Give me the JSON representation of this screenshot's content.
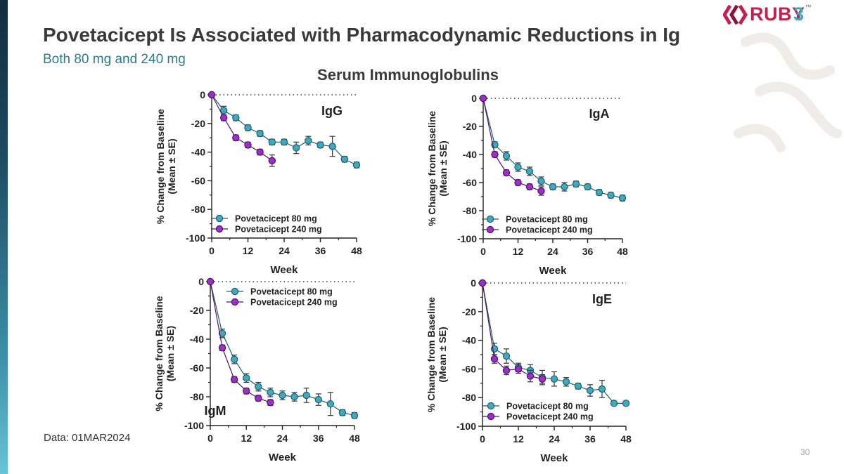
{
  "header": {
    "title": "Povetacicept Is Associated with Pharmacodynamic Reductions in Ig",
    "subtitle": "Both 80 mg and 240 mg",
    "section_title": "Serum Immunoglobulins"
  },
  "logo": {
    "brand": "RUBY",
    "tm": "™",
    "suffix": "3"
  },
  "footnote": "Data: 01MAR2024",
  "page_number": "30",
  "colors": {
    "series_80": "#3fa9bd",
    "series_80_stroke": "#1f5f6e",
    "series_240": "#9b2fc7",
    "series_240_stroke": "#4e1569",
    "axis": "#222222",
    "title": "#3a3a3a",
    "subtitle": "#2b7c8c",
    "brand": "#c4204e"
  },
  "chart_data": [
    {
      "type": "line",
      "panel_label": "IgG",
      "xlabel": "Week",
      "ylabel": [
        "% Change from Baseline",
        "(Mean ± SE)"
      ],
      "xlim": [
        0,
        48
      ],
      "ylim": [
        -100,
        0
      ],
      "xticks": [
        0,
        12,
        24,
        36,
        48
      ],
      "yticks": [
        0,
        -20,
        -40,
        -60,
        -80,
        -100
      ],
      "reference_line_y": 0,
      "series": [
        {
          "name": "Povetacicept 80 mg",
          "x": [
            0,
            4,
            8,
            12,
            16,
            20,
            24,
            28,
            32,
            36,
            40,
            44,
            48
          ],
          "y": [
            0,
            -11,
            -16,
            -23,
            -27,
            -33,
            -33,
            -37,
            -32,
            -35,
            -36,
            -45,
            -49
          ],
          "err": [
            0,
            3,
            2,
            2,
            2,
            2,
            2,
            4,
            3,
            2,
            7,
            2,
            2
          ]
        },
        {
          "name": "Povetacicept 240 mg",
          "x": [
            0,
            4,
            8,
            12,
            16,
            20
          ],
          "y": [
            0,
            -16,
            -30,
            -35,
            -40,
            -46
          ],
          "err": [
            0,
            2,
            2,
            2,
            2,
            4
          ]
        }
      ]
    },
    {
      "type": "line",
      "panel_label": "IgA",
      "xlabel": "Week",
      "ylabel": [
        "% Change from Baseline",
        "(Mean ± SE)"
      ],
      "xlim": [
        0,
        48
      ],
      "ylim": [
        -100,
        0
      ],
      "xticks": [
        0,
        12,
        24,
        36,
        48
      ],
      "yticks": [
        0,
        -20,
        -40,
        -60,
        -80,
        -100
      ],
      "reference_line_y": 0,
      "series": [
        {
          "name": "Povetacicept 80 mg",
          "x": [
            0,
            4,
            8,
            12,
            16,
            20,
            24,
            28,
            32,
            36,
            40,
            44,
            48
          ],
          "y": [
            0,
            -33,
            -41,
            -49,
            -52,
            -59,
            -63,
            -63,
            -61,
            -63,
            -67,
            -69,
            -71
          ],
          "err": [
            0,
            2,
            3,
            3,
            3,
            3,
            2,
            3,
            2,
            2,
            2,
            2,
            2
          ]
        },
        {
          "name": "Povetacicept 240 mg",
          "x": [
            0,
            4,
            8,
            12,
            16,
            20
          ],
          "y": [
            0,
            -40,
            -53,
            -60,
            -63,
            -66
          ],
          "err": [
            0,
            2,
            2,
            2,
            2,
            3
          ]
        }
      ]
    },
    {
      "type": "line",
      "panel_label": "IgM",
      "xlabel": "Week",
      "ylabel": [
        "% Change from Baseline",
        "(Mean ± SE)"
      ],
      "xlim": [
        0,
        48
      ],
      "ylim": [
        -100,
        0
      ],
      "xticks": [
        0,
        12,
        24,
        36,
        48
      ],
      "yticks": [
        0,
        -20,
        -40,
        -60,
        -80,
        -100
      ],
      "reference_line_y": 0,
      "series": [
        {
          "name": "Povetacicept 80 mg",
          "x": [
            0,
            4,
            8,
            12,
            16,
            20,
            24,
            28,
            32,
            36,
            40,
            44,
            48
          ],
          "y": [
            0,
            -36,
            -54,
            -67,
            -73,
            -77,
            -79,
            -80,
            -79,
            -82,
            -85,
            -91,
            -93
          ],
          "err": [
            0,
            3,
            3,
            3,
            3,
            3,
            3,
            3,
            5,
            4,
            8,
            2,
            2
          ]
        },
        {
          "name": "Povetacicept 240 mg",
          "x": [
            0,
            4,
            8,
            12,
            16,
            20
          ],
          "y": [
            0,
            -46,
            -68,
            -76,
            -81,
            -84
          ],
          "err": [
            0,
            2,
            2,
            2,
            2,
            2
          ]
        }
      ]
    },
    {
      "type": "line",
      "panel_label": "IgE",
      "xlabel": "Week",
      "ylabel": [
        "% Change from Baseline",
        "(Mean ± SE)"
      ],
      "xlim": [
        0,
        48
      ],
      "ylim": [
        -100,
        0
      ],
      "xticks": [
        0,
        12,
        24,
        36,
        48
      ],
      "yticks": [
        0,
        -20,
        -40,
        -60,
        -80,
        -100
      ],
      "reference_line_y": 0,
      "series": [
        {
          "name": "Povetacicept 80 mg",
          "x": [
            0,
            4,
            8,
            12,
            16,
            20,
            24,
            28,
            32,
            36,
            40,
            44,
            48
          ],
          "y": [
            0,
            -46,
            -51,
            -59,
            -61,
            -66,
            -67,
            -69,
            -72,
            -75,
            -74,
            -84,
            -84
          ],
          "err": [
            0,
            4,
            5,
            3,
            4,
            5,
            5,
            3,
            2,
            4,
            6,
            1,
            1
          ]
        },
        {
          "name": "Povetacicept 240 mg",
          "x": [
            0,
            4,
            8,
            12,
            16,
            20
          ],
          "y": [
            0,
            -53,
            -61,
            -60,
            -65,
            -67
          ],
          "err": [
            0,
            3,
            3,
            3,
            4,
            3
          ]
        }
      ]
    }
  ]
}
